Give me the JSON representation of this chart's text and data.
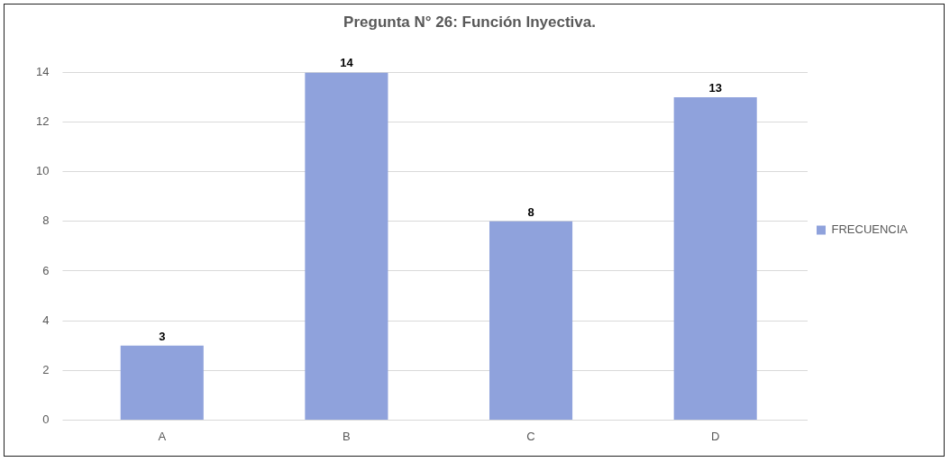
{
  "chart_data": {
    "type": "bar",
    "title": "Pregunta N° 26: Función Inyectiva.",
    "categories": [
      "A",
      "B",
      "C",
      "D"
    ],
    "series": [
      {
        "name": "FRECUENCIA",
        "color": "#8fa2dc",
        "values": [
          3,
          14,
          8,
          13
        ]
      }
    ],
    "ylim": [
      0,
      14
    ],
    "yticks": [
      0,
      2,
      4,
      6,
      8,
      10,
      12,
      14
    ],
    "grid": "y",
    "legend": "right",
    "data_labels": true
  }
}
